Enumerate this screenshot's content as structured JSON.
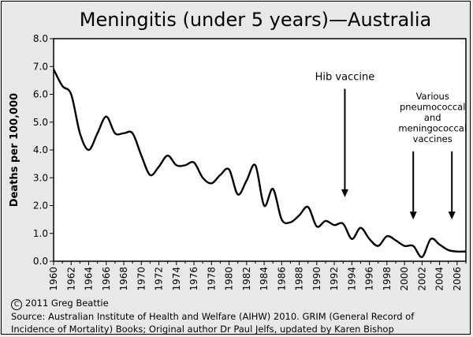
{
  "chart_data": {
    "type": "line",
    "title": "Meningitis (under 5 years)—Australia",
    "ylabel": "Deaths per 100,000",
    "xlabel": "",
    "xlim": [
      1960,
      2007
    ],
    "ylim": [
      0,
      8
    ],
    "yticks": [
      "0.0",
      "1.0",
      "2.0",
      "3.0",
      "4.0",
      "5.0",
      "6.0",
      "7.0",
      "8.0"
    ],
    "xticks": [
      "1960",
      "1962",
      "1964",
      "1966",
      "1968",
      "1970",
      "1972",
      "1974",
      "1976",
      "1978",
      "1980",
      "1982",
      "1984",
      "1986",
      "1988",
      "1990",
      "1992",
      "1994",
      "1996",
      "1998",
      "2000",
      "2002",
      "2004",
      "2006"
    ],
    "grid": false,
    "series": [
      {
        "color": "#000000",
        "x": [
          1960,
          1961,
          1962,
          1963,
          1964,
          1965,
          1966,
          1967,
          1968,
          1969,
          1970,
          1971,
          1972,
          1973,
          1974,
          1975,
          1976,
          1977,
          1978,
          1979,
          1980,
          1981,
          1982,
          1983,
          1984,
          1985,
          1986,
          1987,
          1988,
          1989,
          1990,
          1991,
          1992,
          1993,
          1994,
          1995,
          1996,
          1997,
          1998,
          1999,
          2000,
          2001,
          2002,
          2003,
          2004,
          2005,
          2006,
          2007
        ],
        "values": [
          6.9,
          6.3,
          6.0,
          4.6,
          4.0,
          4.6,
          5.2,
          4.6,
          4.6,
          4.6,
          3.8,
          3.1,
          3.4,
          3.8,
          3.45,
          3.45,
          3.55,
          3.0,
          2.8,
          3.1,
          3.3,
          2.4,
          2.9,
          3.45,
          2.0,
          2.6,
          1.5,
          1.4,
          1.65,
          1.95,
          1.25,
          1.45,
          1.3,
          1.35,
          0.8,
          1.2,
          0.8,
          0.55,
          0.9,
          0.75,
          0.55,
          0.55,
          0.15,
          0.8,
          0.6,
          0.4,
          0.35,
          0.35
        ]
      }
    ],
    "annotations": [
      {
        "text_lines": [
          "Hib vaccine"
        ],
        "x": 1993.2,
        "y_top": 6.2,
        "y_tip": 2.3
      },
      {
        "text_lines": [
          "Various",
          "pneumococcal",
          "and",
          "meningococcal",
          "vaccines"
        ],
        "x": 2001.0,
        "y_top": 3.95,
        "y_tip": 1.5
      },
      {
        "text_lines": [],
        "x": 2005.4,
        "y_top": 3.95,
        "y_tip": 1.5
      }
    ]
  },
  "footer": {
    "copyright_symbol": "C",
    "copyright": "2011 Greg Beattie",
    "source_line1": "Source: Australian Institute of Health and Welfare (AIHW) 2010. GRIM (General Record of",
    "source_line2": "Incidence of Mortality) Books; Original author Dr Paul Jelfs, updated by Karen Bishop"
  }
}
